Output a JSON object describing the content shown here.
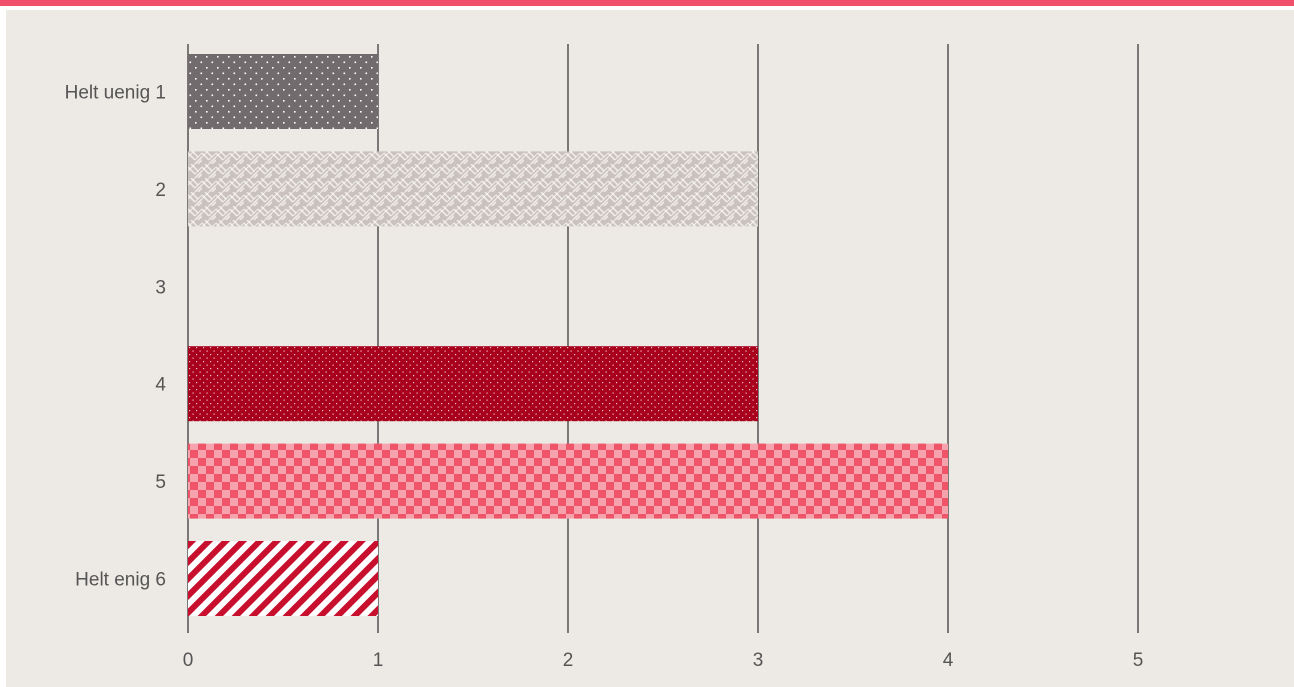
{
  "colors": {
    "accent_bar": "#f0506a",
    "background": "#ede9e4",
    "gridline": "#3d3d3d",
    "text": "#555555",
    "bar_gray_dots": "#716b6d",
    "bar_light_weave": "#c9c2be",
    "bar_dark_red_dots": "#a8001c",
    "bar_red_check": "#ef5468",
    "bar_red_stripes": "#c8102e"
  },
  "chart_data": {
    "type": "bar",
    "orientation": "horizontal",
    "categories": [
      "Helt uenig 1",
      "2",
      "3",
      "4",
      "5",
      "Helt enig 6"
    ],
    "values": [
      1,
      3,
      0,
      3,
      4,
      1
    ],
    "bar_fills": [
      "gray-dots",
      "light-weave",
      "none",
      "dark-red-dots",
      "red-check",
      "red-stripes"
    ],
    "x_ticks": [
      "0",
      "1",
      "2",
      "3",
      "4",
      "5"
    ],
    "xlim": [
      0,
      5.8
    ],
    "grid": true,
    "title": "",
    "xlabel": "",
    "ylabel": ""
  }
}
